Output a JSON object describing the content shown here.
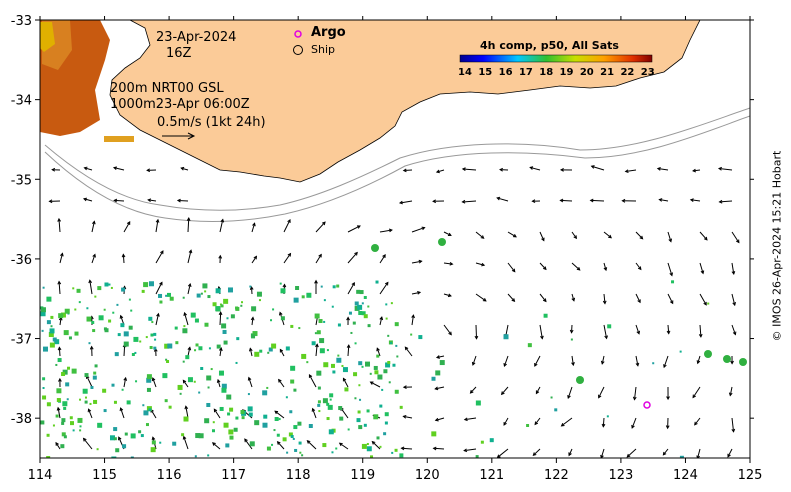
{
  "map": {
    "date": "23-Apr-2024",
    "hour": "16Z",
    "product_line1": "200m  NRT00 GSL",
    "product_line2": "1000m23-Apr 06:00Z",
    "scale_label": "0.5m/s (1kt 24h)",
    "legend_argo": "Argo",
    "legend_ship": "Ship",
    "colorbar_title": "4h comp, p50, All Sats",
    "colorbar_ticks": [
      "14",
      "15",
      "16",
      "17",
      "18",
      "19",
      "20",
      "21",
      "22",
      "23"
    ],
    "credit": "© IMOS 26-Apr-2024 15:21 Hobart",
    "x_axis_ticks": [
      "114",
      "115",
      "116",
      "117",
      "118",
      "119",
      "120",
      "121",
      "122",
      "123",
      "124",
      "125"
    ],
    "y_axis_ticks": [
      "-33",
      "-34",
      "-35",
      "-36",
      "-37",
      "-38"
    ],
    "x_range": [
      114,
      125
    ],
    "y_range": [
      -38.5,
      -33
    ],
    "colors": {
      "land": "#fbcb98",
      "argo": "#e000e0",
      "sst_warm": "#c8500a",
      "sst_cool": "#30b050"
    }
  }
}
